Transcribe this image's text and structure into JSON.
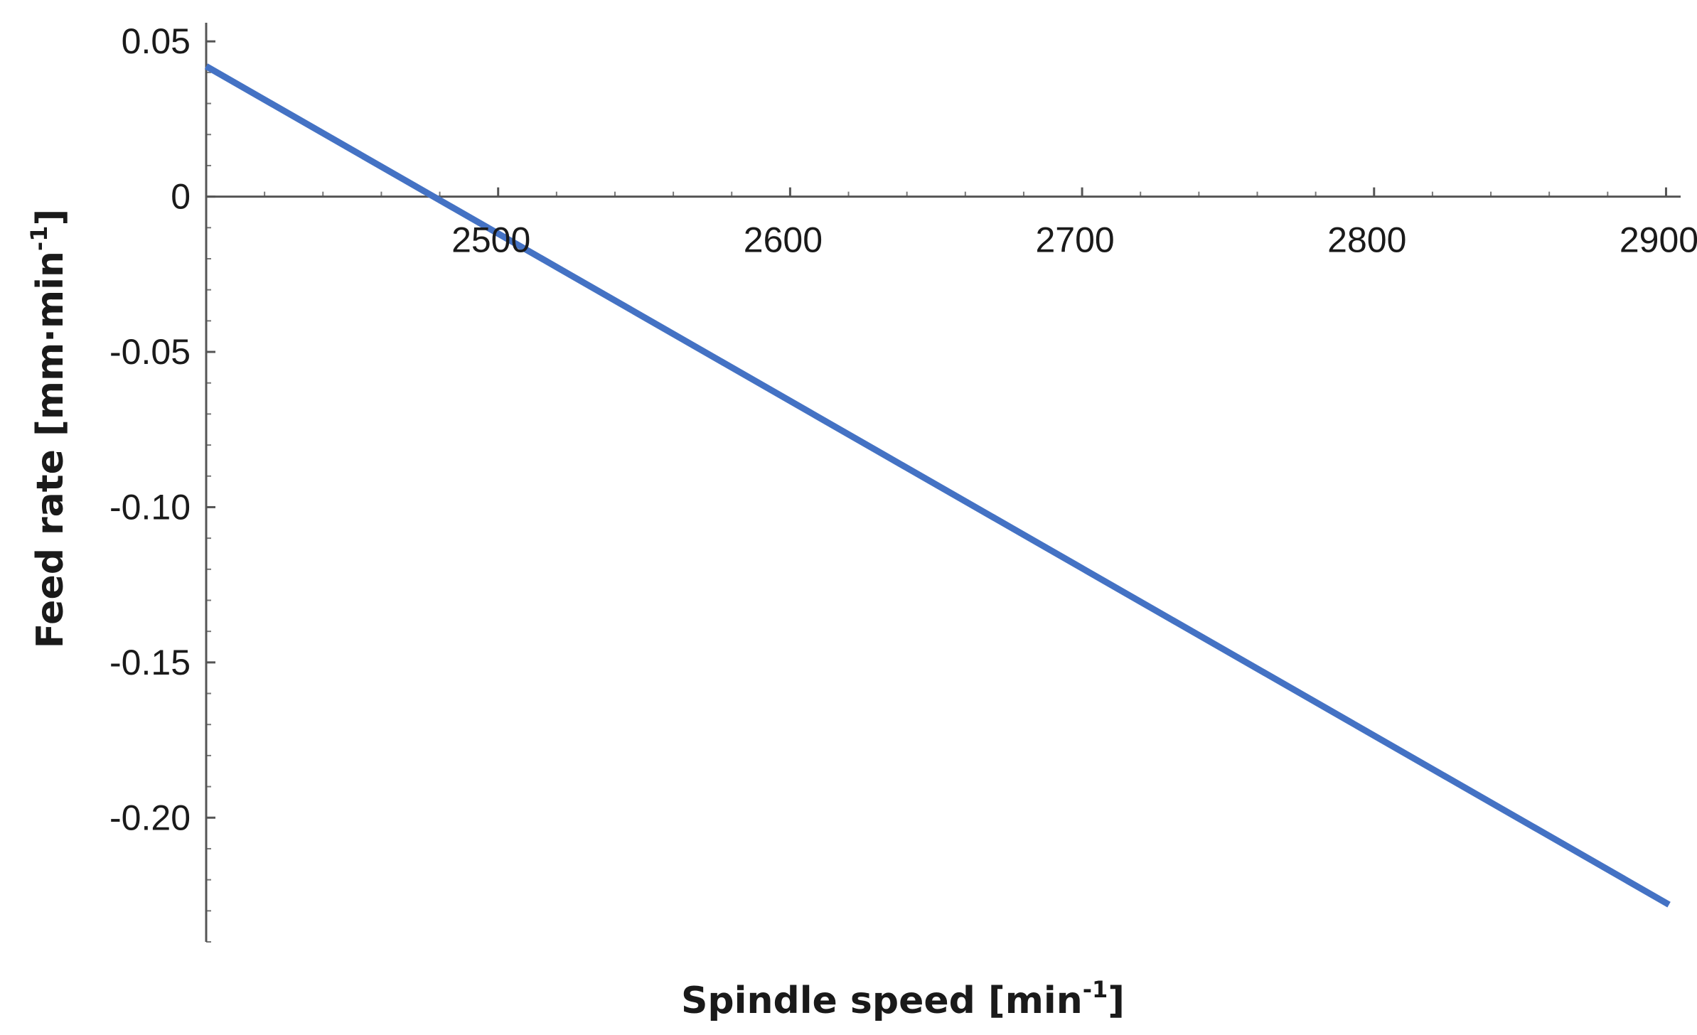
{
  "chart_data": {
    "type": "line",
    "title": "",
    "xlabel": {
      "base": "Spindle speed [min",
      "sup": "-1",
      "tail": "]"
    },
    "ylabel": {
      "base": "Feed rate [mm·min",
      "sup": "-1",
      "tail": "]"
    },
    "xlim": [
      2400,
      2905
    ],
    "ylim": [
      -0.24,
      0.056
    ],
    "x_ticks": [
      2500,
      2600,
      2700,
      2800,
      2900
    ],
    "x_tick_labels": [
      "2500",
      "2600",
      "2700",
      "2800",
      "2900"
    ],
    "y_ticks": [
      0.05,
      0,
      -0.05,
      -0.1,
      -0.15,
      -0.2
    ],
    "y_tick_labels": [
      "0.05",
      "0",
      "-0.05",
      "-0.10",
      "-0.15",
      "-0.20"
    ],
    "x_minor_step": 20,
    "y_minor_step": 0.01,
    "grid": false,
    "legend": "none",
    "series": [
      {
        "x": [
          2400,
          2901
        ],
        "y": [
          0.042,
          -0.228
        ]
      }
    ],
    "colors": {
      "line": "#4472C4",
      "axis": "#555555",
      "text": "#1a1a1a"
    }
  }
}
